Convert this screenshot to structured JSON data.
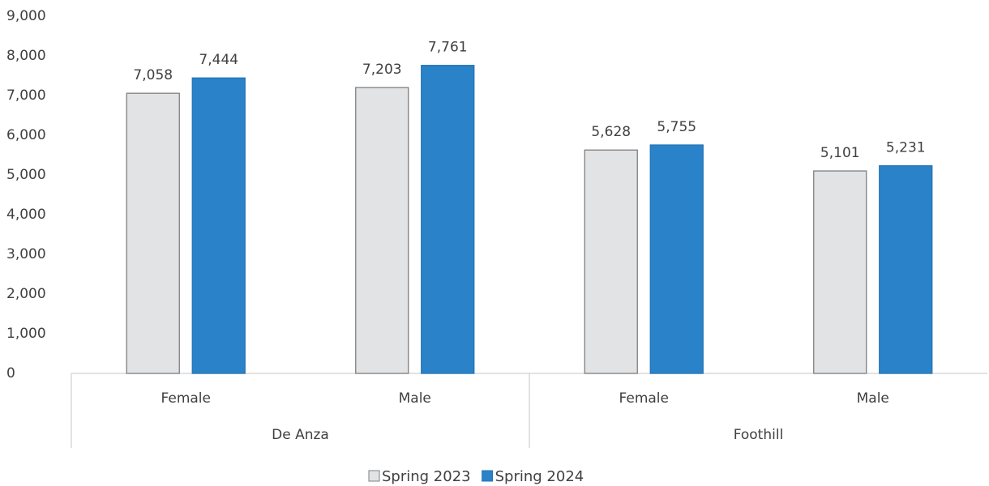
{
  "chart_data": {
    "type": "bar",
    "groups": [
      {
        "name": "De Anza",
        "categories": [
          "Female",
          "Male"
        ]
      },
      {
        "name": "Foothill",
        "categories": [
          "Female",
          "Male"
        ]
      }
    ],
    "series": [
      {
        "name": "Spring 2023",
        "color": "#e1e3e5",
        "values": [
          7058,
          7203,
          5628,
          5101
        ],
        "value_labels": [
          "7,058",
          "7,203",
          "5,628",
          "5,101"
        ]
      },
      {
        "name": "Spring 2024",
        "color": "#2a82c8",
        "values": [
          7444,
          7761,
          5755,
          5231
        ],
        "value_labels": [
          "7,444",
          "7,761",
          "5,755",
          "5,231"
        ]
      }
    ],
    "ylim": [
      0,
      9000
    ],
    "yticks": [
      0,
      {
        "value": 1000,
        "label": "1,000"
      },
      {
        "value": 2000,
        "label": "2,000"
      },
      {
        "value": 3000,
        "label": "3,000"
      },
      {
        "value": 4000,
        "label": "4,000"
      },
      {
        "value": 5000,
        "label": "5,000"
      },
      {
        "value": 6000,
        "label": "6,000"
      },
      {
        "value": 7000,
        "label": "7,000"
      },
      {
        "value": 8000,
        "label": "8,000"
      },
      {
        "value": 9000,
        "label": "9,000"
      }
    ],
    "grid": false,
    "legend": "bottom"
  }
}
